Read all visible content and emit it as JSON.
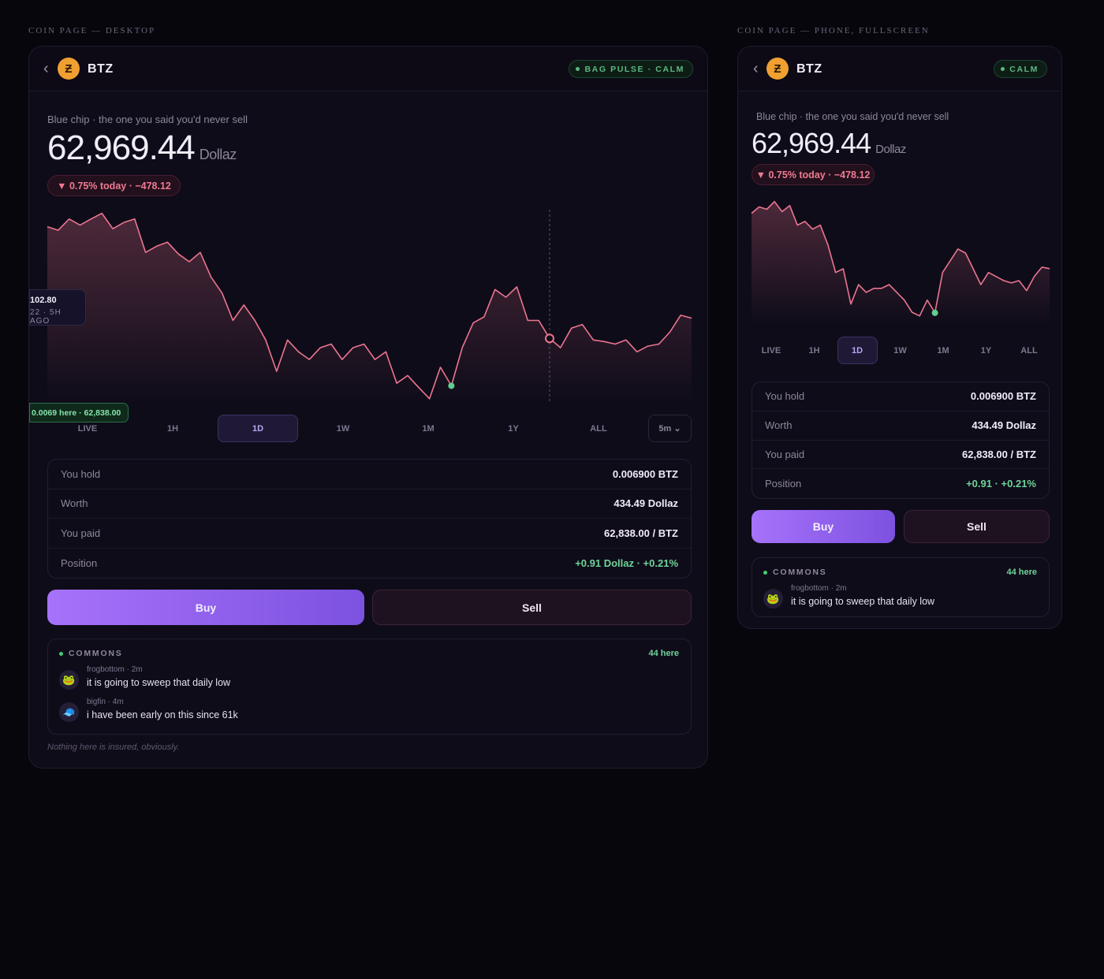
{
  "labels": {
    "desktop": "COIN PAGE — DESKTOP",
    "phone": "COIN PAGE — PHONE, FULLSCREEN"
  },
  "desktop": {
    "back": "‹",
    "coin_icon": "Ƶ",
    "symbol": "BTZ",
    "badge": "BAG PULSE · CALM",
    "tagline": "Blue chip · the one you said you'd never sell",
    "price": "62,969.44",
    "unit": "Dollaz",
    "change": "▼ 0.75% today · −478.12",
    "chart": {
      "type": "line",
      "color": "#ec7590",
      "ylim": [
        62805,
        63180
      ],
      "values": [
        63147,
        63140,
        63162,
        63150,
        63162,
        63173,
        63143,
        63155,
        63162,
        63097,
        63109,
        63117,
        63094,
        63079,
        63097,
        63049,
        63018,
        62965,
        62995,
        62965,
        62927,
        62866,
        62927,
        62904,
        62889,
        62912,
        62919,
        62889,
        62912,
        62919,
        62889,
        62904,
        62843,
        62858,
        62835,
        62813,
        62874,
        62838,
        62912,
        62960,
        62972,
        63025,
        63010,
        63030,
        62965,
        62965,
        62930,
        62912,
        62950,
        62957,
        62927,
        62924,
        62919,
        62927,
        62904,
        62915,
        62919,
        62942,
        62975,
        62969.44
      ]
    },
    "tooltip": {
      "value": "102.80",
      "time": "22 · 5H AGO"
    },
    "buy_tag": "0.0069 here · 62,838.00",
    "ranges": [
      "LIVE",
      "1H",
      "1D",
      "1W",
      "1M",
      "1Y",
      "ALL"
    ],
    "interval": "5m ⌄",
    "holdings": [
      {
        "label": "You hold",
        "value": "0.006900 BTZ"
      },
      {
        "label": "Worth",
        "value": "434.49 Dollaz"
      },
      {
        "label": "You paid",
        "value": "62,838.00 / BTZ"
      },
      {
        "label": "Position",
        "value": "+0.91 Dollaz · +0.21%"
      }
    ],
    "buy": "Buy",
    "sell": "Sell",
    "commons": {
      "title": "COMMONS",
      "count": "44 here",
      "messages": [
        {
          "avatar": "🐸",
          "meta": "frogbottom · 2m",
          "text": "it is going to sweep that daily low"
        },
        {
          "avatar": "🧢",
          "meta": "bigfin · 4m",
          "text": "i have been early on this since 61k"
        }
      ]
    },
    "footer": "Nothing here is insured, obviously."
  },
  "phone": {
    "back": "‹",
    "coin_icon": "Ƶ",
    "symbol": "BTZ",
    "badge": "CALM",
    "tagline": "Blue chip · the one you said you'd never sell",
    "price": "62,969.44",
    "unit": "Dollaz",
    "change": "▼ 0.75% today · −478.12",
    "chart": {
      "type": "line",
      "color": "#ec7590",
      "ylim": [
        62805,
        63180
      ],
      "values": [
        63134,
        63153,
        63146,
        63169,
        63139,
        63157,
        63099,
        63110,
        63087,
        63099,
        63040,
        62958,
        62969,
        62864,
        62922,
        62899,
        62911,
        62911,
        62922,
        62899,
        62876,
        62840,
        62829,
        62876,
        62838,
        62958,
        62993,
        63028,
        63016,
        62969,
        62922,
        62958,
        62946,
        62934,
        62927,
        62934,
        62904,
        62946,
        62974,
        62969.44
      ]
    },
    "ranges": [
      "LIVE",
      "1H",
      "1D",
      "1W",
      "1M",
      "1Y",
      "ALL"
    ],
    "holdings": [
      {
        "label": "You hold",
        "value": "0.006900 BTZ"
      },
      {
        "label": "Worth",
        "value": "434.49 Dollaz"
      },
      {
        "label": "You paid",
        "value": "62,838.00 / BTZ"
      },
      {
        "label": "Position",
        "value": "+0.91 · +0.21%"
      }
    ],
    "buy": "Buy",
    "sell": "Sell",
    "commons": {
      "title": "COMMONS",
      "count": "44 here",
      "messages": [
        {
          "avatar": "🐸",
          "meta": "frogbottom · 2m",
          "text": "it is going to sweep that daily low"
        }
      ]
    }
  }
}
